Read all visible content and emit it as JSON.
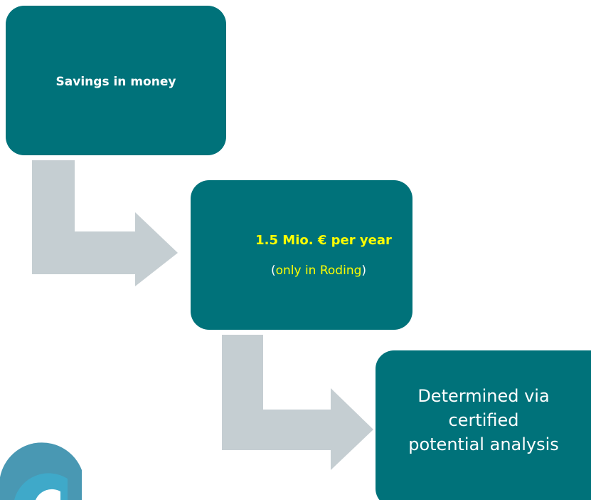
{
  "nodes": [
    {
      "label": "Savings in money"
    },
    {
      "label": "1.5 Mio. € per year",
      "note_parts": [
        "(",
        "only in Roding",
        ")"
      ]
    },
    {
      "label_lines": [
        "Determined via",
        "certified",
        "potential analysis"
      ]
    }
  ]
}
